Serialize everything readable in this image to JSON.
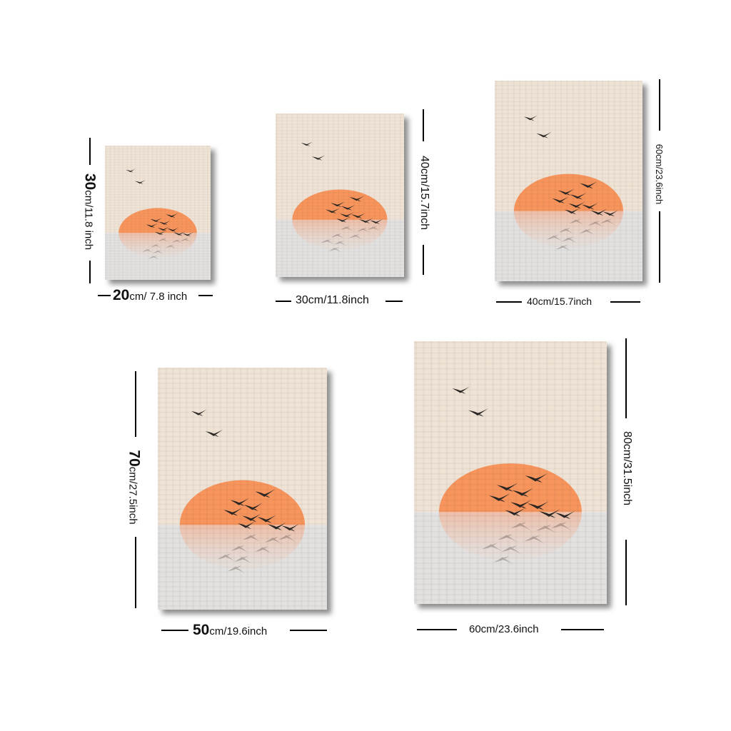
{
  "colors": {
    "linen_top": "#efe3d6",
    "linen_bottom": "#e4e2e0",
    "sun": "#f8955d",
    "bird": "#2a2623",
    "line": "#000000"
  },
  "icons": [
    "bird-flock-icon",
    "sun-icon"
  ],
  "sizes": [
    {
      "id": "20x30",
      "width_label": {
        "num": "20",
        "unit": "cm/ 7.8 inch"
      },
      "height_label": {
        "num": "30",
        "unit": "cm/11.8 inch"
      }
    },
    {
      "id": "30x40",
      "width_label": {
        "num": "",
        "unit": "30cm/11.8inch"
      },
      "height_label": {
        "num": "",
        "unit": "40cm/15.7inch"
      }
    },
    {
      "id": "40x60",
      "width_label": {
        "num": "",
        "unit": "40cm/15.7inch"
      },
      "height_label": {
        "num": "",
        "unit": "60cm/23.6inch"
      }
    },
    {
      "id": "50x70",
      "width_label": {
        "num": "50",
        "unit": "cm/19.6inch"
      },
      "height_label": {
        "num": "70",
        "unit": "cm/27.5inch"
      }
    },
    {
      "id": "60x80",
      "width_label": {
        "num": "",
        "unit": "60cm/23.6inch"
      },
      "height_label": {
        "num": "",
        "unit": "80cm/31.5inch"
      }
    }
  ]
}
